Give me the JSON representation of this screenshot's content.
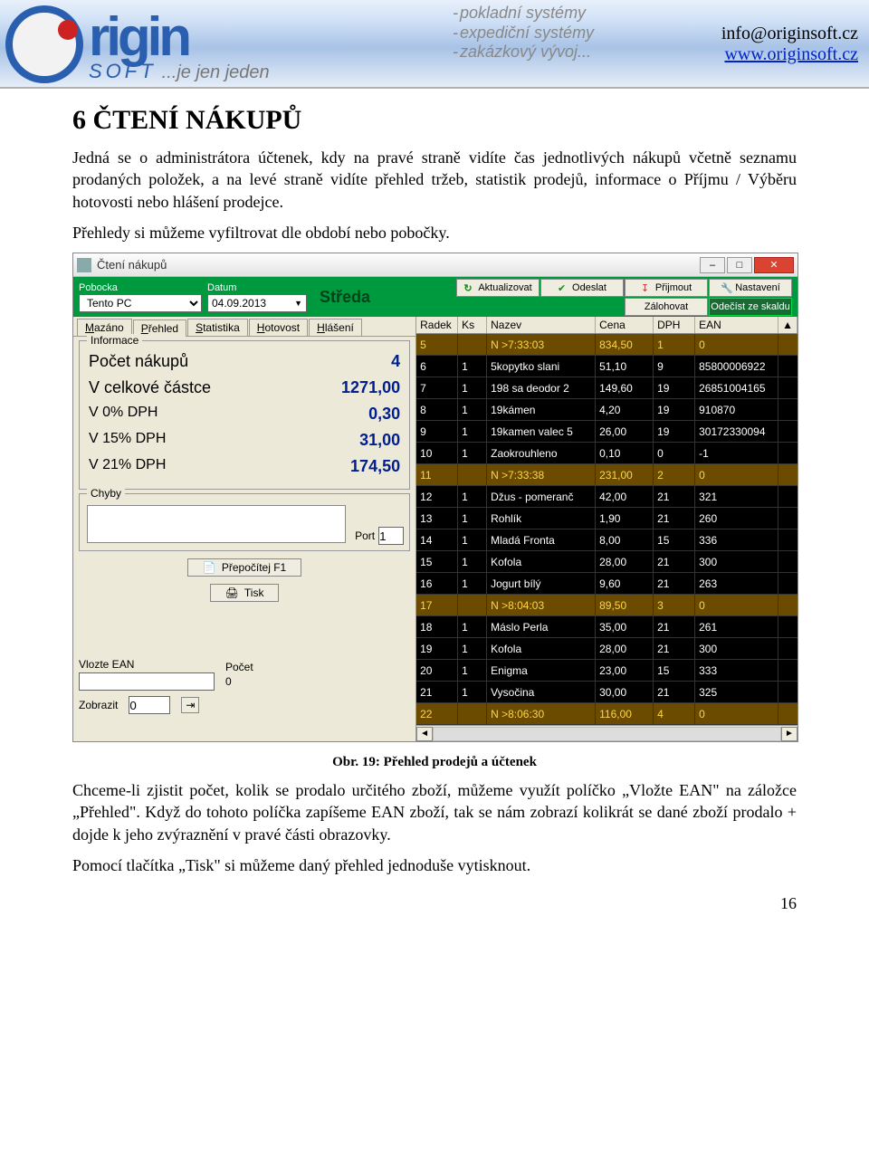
{
  "header": {
    "logo_main": "rigin",
    "logo_sub": "SOFT",
    "logo_slogan": "...je jen jeden",
    "taglines": [
      "pokladní systémy",
      "expediční systémy",
      "zakázkový vývoj..."
    ],
    "email": "info@originsoft.cz",
    "www": "www.originsoft.cz"
  },
  "section": {
    "title": "6 ČTENÍ NÁKUPŮ",
    "p1": "Jedná se o administrátora účtenek, kdy na pravé straně vidíte čas jednotlivých nákupů včetně seznamu prodaných položek, a na levé straně vidíte přehled tržeb, statistik prodejů, informace o Příjmu / Výběru hotovosti nebo hlášení prodejce.",
    "p2": "Přehledy si můžeme vyfiltrovat dle období nebo pobočky.",
    "caption": "Obr. 19: Přehled prodejů a účtenek",
    "p3": "Chceme-li zjistit počet, kolik se prodalo určitého zboží, můžeme využít políčko „Vložte EAN\" na záložce „Přehled\". Když do tohoto políčka zapíšeme EAN zboží, tak se nám zobrazí kolikrát se dané zboží prodalo + dojde k jeho zvýraznění v pravé části obrazovky.",
    "p4": "Pomocí tlačítka „Tisk\" si můžeme daný přehled jednoduše vytisknout."
  },
  "pageno": "16",
  "win": {
    "title": "Čtení nákupů",
    "pobocka_label": "Pobocka",
    "pobocka_value": "Tento PC",
    "datum_label": "Datum",
    "datum_value": "04.09.2013",
    "day": "Středa",
    "btns": {
      "aktualizovat": "Aktualizovat",
      "odeslat": "Odeslat",
      "prijmout": "Přijmout",
      "nastaveni": "Nastavení",
      "zalohovat": "Zálohovat",
      "odecist": "Odečíst ze skaldu"
    },
    "tabs": [
      "Mazáno",
      "Přehled",
      "Statistika",
      "Hotovost",
      "Hlášení"
    ],
    "info_label": "Informace",
    "info": [
      {
        "k": "Počet nákupů",
        "v": "4",
        "big": true
      },
      {
        "k": "V celkové částce",
        "v": "1271,00",
        "big": true
      },
      {
        "k": "V 0% DPH",
        "v": "0,30"
      },
      {
        "k": "V 15% DPH",
        "v": "31,00"
      },
      {
        "k": "V 21% DPH",
        "v": "174,50"
      }
    ],
    "chyby_label": "Chyby",
    "port_label": "Port",
    "port_value": "1",
    "prepocitej": "Přepočítej F1",
    "tisk": "Tisk",
    "vlozte_ean": "Vlozte EAN",
    "pocet_label": "Počet",
    "pocet_value": "0",
    "zobrazit_label": "Zobrazit",
    "zobrazit_value": "0",
    "grid_cols": [
      "Radek",
      "Ks",
      "Nazev",
      "Cena",
      "DPH",
      "EAN"
    ],
    "rows": [
      {
        "r": "5",
        "ks": "",
        "n": "N >7:33:03",
        "c": "834,50",
        "d": "1",
        "e": "0",
        "hl": true
      },
      {
        "r": "6",
        "ks": "1",
        "n": "5kopytko slani",
        "c": "51,10",
        "d": "9",
        "e": "85800006922"
      },
      {
        "r": "7",
        "ks": "1",
        "n": "198 sa deodor 2",
        "c": "149,60",
        "d": "19",
        "e": "26851004165"
      },
      {
        "r": "8",
        "ks": "1",
        "n": "19kámen",
        "c": "4,20",
        "d": "19",
        "e": "910870"
      },
      {
        "r": "9",
        "ks": "1",
        "n": "19kamen valec 5",
        "c": "26,00",
        "d": "19",
        "e": "30172330094"
      },
      {
        "r": "10",
        "ks": "1",
        "n": "Zaokrouhleno",
        "c": "0,10",
        "d": "0",
        "e": "-1"
      },
      {
        "r": "11",
        "ks": "",
        "n": "N >7:33:38",
        "c": "231,00",
        "d": "2",
        "e": "0",
        "hl": true
      },
      {
        "r": "12",
        "ks": "1",
        "n": "Džus - pomeranč",
        "c": "42,00",
        "d": "21",
        "e": "321"
      },
      {
        "r": "13",
        "ks": "1",
        "n": "Rohlík",
        "c": "1,90",
        "d": "21",
        "e": "260"
      },
      {
        "r": "14",
        "ks": "1",
        "n": "Mladá Fronta",
        "c": "8,00",
        "d": "15",
        "e": "336"
      },
      {
        "r": "15",
        "ks": "1",
        "n": "Kofola",
        "c": "28,00",
        "d": "21",
        "e": "300"
      },
      {
        "r": "16",
        "ks": "1",
        "n": "Jogurt bílý",
        "c": "9,60",
        "d": "21",
        "e": "263"
      },
      {
        "r": "17",
        "ks": "",
        "n": "N >8:04:03",
        "c": "89,50",
        "d": "3",
        "e": "0",
        "hl": true
      },
      {
        "r": "18",
        "ks": "1",
        "n": "Máslo Perla",
        "c": "35,00",
        "d": "21",
        "e": "261"
      },
      {
        "r": "19",
        "ks": "1",
        "n": "Kofola",
        "c": "28,00",
        "d": "21",
        "e": "300"
      },
      {
        "r": "20",
        "ks": "1",
        "n": "Enigma",
        "c": "23,00",
        "d": "15",
        "e": "333"
      },
      {
        "r": "21",
        "ks": "1",
        "n": "Vysočina",
        "c": "30,00",
        "d": "21",
        "e": "325"
      },
      {
        "r": "22",
        "ks": "",
        "n": "N >8:06:30",
        "c": "116,00",
        "d": "4",
        "e": "0",
        "hl": true
      }
    ],
    "row_colors": {
      "normal_bg": "#000000",
      "normal_fg": "#ffffff",
      "hl_bg": "#6a4b00",
      "hl_fg": "#ffd54a"
    }
  }
}
